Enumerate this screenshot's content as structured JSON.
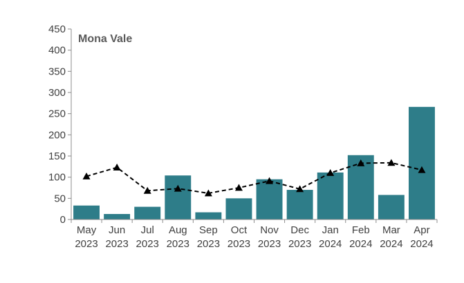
{
  "chart_data": {
    "type": "bar",
    "title": "Mona Vale",
    "xlabel": "",
    "ylabel": "",
    "ylim": [
      0,
      450
    ],
    "yticks": [
      0,
      50,
      100,
      150,
      200,
      250,
      300,
      350,
      400,
      450
    ],
    "grid": false,
    "legend": "none",
    "categories": [
      [
        "May",
        "2023"
      ],
      [
        "Jun",
        "2023"
      ],
      [
        "Jul",
        "2023"
      ],
      [
        "Aug",
        "2023"
      ],
      [
        "Sep",
        "2023"
      ],
      [
        "Oct",
        "2023"
      ],
      [
        "Nov",
        "2023"
      ],
      [
        "Dec",
        "2023"
      ],
      [
        "Jan",
        "2024"
      ],
      [
        "Feb",
        "2024"
      ],
      [
        "Mar",
        "2024"
      ],
      [
        "Apr",
        "2024"
      ]
    ],
    "series": [
      {
        "type": "bar",
        "color": "#2e7d89",
        "values": [
          33,
          13,
          30,
          104,
          17,
          50,
          95,
          70,
          111,
          152,
          58,
          266
        ]
      },
      {
        "type": "line",
        "style": "dashed",
        "marker": "triangle",
        "color": "#000000",
        "values": [
          102,
          123,
          68,
          73,
          62,
          75,
          91,
          72,
          110,
          133,
          134,
          117
        ]
      }
    ]
  }
}
